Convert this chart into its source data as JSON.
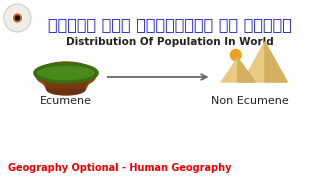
{
  "title_hindi": "विश्व में जनसँख्या का वितरण",
  "title_english": "Distribution Of Population In World",
  "label_left": "Ecumene",
  "label_right": "Non Ecumene",
  "footer": "Geography Optional - Human Geography",
  "bg_color": "#ffffff",
  "title_hindi_color": "#2222cc",
  "title_english_color": "#222222",
  "label_color": "#222222",
  "footer_color": "#ee0000",
  "arrow_color": "#666666",
  "grass_top": "#4a8a1a",
  "grass_edge": "#3a6e10",
  "soil_top": "#8B4513",
  "soil_dark": "#6B3010",
  "sand_light": "#e8cb80",
  "sand_mid": "#d4b060",
  "sand_dark": "#c09040",
  "sun_color": "#f0a020",
  "logo_bg": "#f0ede8",
  "logo_border": "#cccccc"
}
